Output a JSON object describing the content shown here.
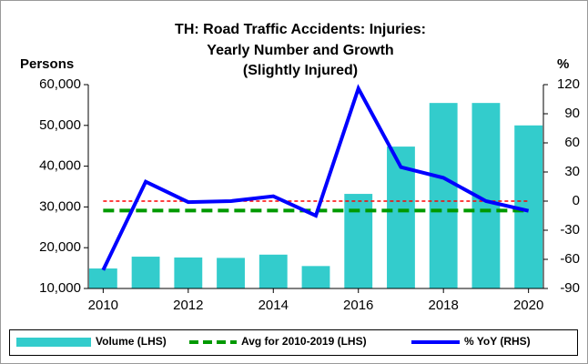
{
  "chart_data": {
    "type": "bar-line",
    "title": [
      "TH: Road Traffic Accidents: Injuries:",
      "Yearly Number and Growth",
      "(Slightly Injured)"
    ],
    "y_label": "Persons",
    "y2_label": "%",
    "x": [
      2010,
      2011,
      2012,
      2013,
      2014,
      2015,
      2016,
      2017,
      2018,
      2019,
      2020
    ],
    "xlim": [
      2009.65,
      2020.35
    ],
    "xticks": [
      2010,
      2012,
      2014,
      2016,
      2018,
      2020
    ],
    "ylim": [
      10000,
      60000
    ],
    "yticks": [
      {
        "value": 10000,
        "label": "10,000"
      },
      {
        "value": 20000,
        "label": "20,000"
      },
      {
        "value": 30000,
        "label": "30,000"
      },
      {
        "value": 40000,
        "label": "40,000"
      },
      {
        "value": 50000,
        "label": "50,000"
      },
      {
        "value": 60000,
        "label": "60,000"
      }
    ],
    "y2lim": [
      -90,
      120
    ],
    "y2ticks": [
      -90,
      -60,
      -30,
      0,
      30,
      60,
      90,
      120
    ],
    "series": [
      {
        "name": "Volume (LHS)",
        "kind": "bar",
        "color": "#33cccc",
        "values": [
          14900,
          17800,
          17600,
          17500,
          18300,
          15500,
          33200,
          44800,
          55500,
          55500,
          50000
        ]
      },
      {
        "name": "Avg for 2010-2019 (LHS)",
        "kind": "dashed-line",
        "color": "#009900",
        "values": [
          29100,
          29100,
          29100,
          29100,
          29100,
          29100,
          29100,
          29100,
          29100,
          29100,
          29100
        ]
      },
      {
        "name": "% YoY (RHS)",
        "kind": "line",
        "axis": "y2",
        "color": "#0000ff",
        "values": [
          -71,
          20,
          -1,
          0,
          5,
          -15,
          116,
          35,
          24,
          0,
          -10
        ]
      }
    ],
    "zero_line_color": "#ff0000"
  }
}
